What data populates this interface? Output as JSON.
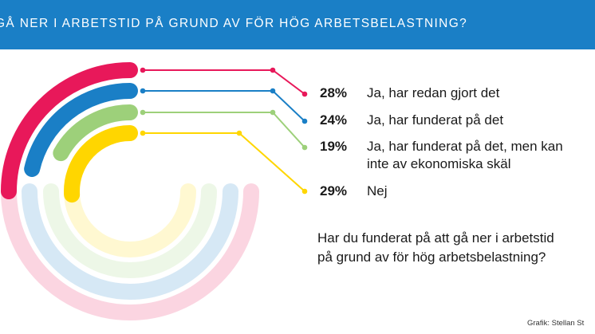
{
  "header": {
    "title": "GÅ NER I ARBETSTID PÅ GRUND AV FÖR HÖG ARBETSBELASTNING?"
  },
  "chart_data": {
    "type": "radial-bar",
    "series": [
      {
        "value": "28%",
        "label": "Ja, har redan gjort det",
        "color": "#e8185a"
      },
      {
        "value": "24%",
        "label": "Ja, har funderat på det",
        "color": "#1a7fc6"
      },
      {
        "value": "19%",
        "label": "Ja, har funderat på det, men kan inte av ekonomiska skäl",
        "color": "#9dd07a"
      },
      {
        "value": "29%",
        "label": "Nej",
        "color": "#ffd600"
      }
    ],
    "question": "Har du funderat på att gå ner i arbetstid på grund av för hög arbetsbelastning?"
  },
  "footer": {
    "credit": "Grafik: Stellan St"
  }
}
